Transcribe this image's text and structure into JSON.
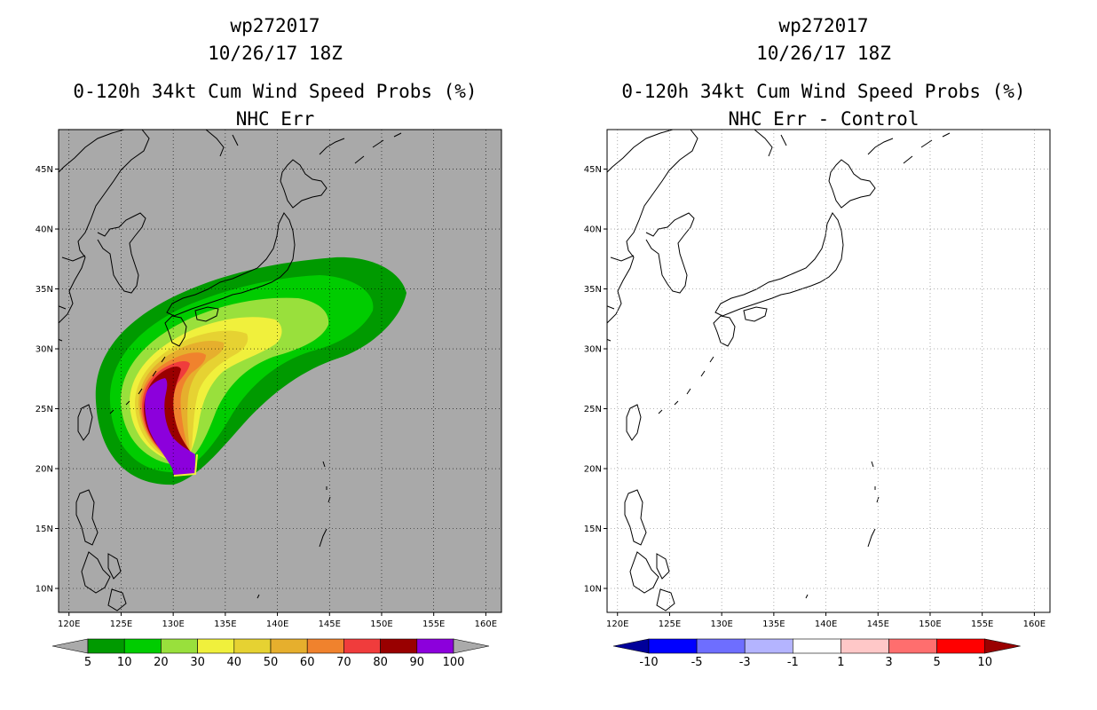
{
  "left": {
    "title_lines": [
      "wp272017",
      "10/26/17 18Z",
      "0-120h 34kt Cum Wind Speed Probs (%)",
      "NHC Err"
    ],
    "colorbar": {
      "labels": [
        "5",
        "10",
        "20",
        "30",
        "40",
        "50",
        "60",
        "70",
        "80",
        "90",
        "100"
      ],
      "colors": [
        "#009a00",
        "#00cc00",
        "#99e03c",
        "#f0f03c",
        "#e6d232",
        "#e6af2d",
        "#f0822d",
        "#f03c3c",
        "#990000",
        "#8c00dc"
      ],
      "end_color": "#aaaaaa"
    },
    "background": "#a9a9a9"
  },
  "right": {
    "title_lines": [
      "wp272017",
      "10/26/17 18Z",
      "0-120h 34kt Cum Wind Speed Probs (%)",
      "NHC Err - Control"
    ],
    "colorbar": {
      "labels": [
        "-10",
        "-5",
        "-3",
        "-1",
        "1",
        "3",
        "5",
        "10"
      ],
      "colors": [
        "#0000ff",
        "#6e6eff",
        "#b4b4ff",
        "#ffffff",
        "#ffc8c8",
        "#ff6e6e",
        "#ff0000"
      ],
      "left_end_color": "#00009a",
      "right_end_color": "#9a0000"
    },
    "background": "#ffffff"
  },
  "map": {
    "lon_labels": [
      "120E",
      "125E",
      "130E",
      "135E",
      "140E",
      "145E",
      "150E",
      "155E",
      "160E"
    ],
    "lat_labels": [
      "45N",
      "40N",
      "35N",
      "30N",
      "25N",
      "20N",
      "15N",
      "10N"
    ],
    "lon_values": [
      120,
      125,
      130,
      135,
      140,
      145,
      150,
      155,
      160
    ],
    "lat_values": [
      45,
      40,
      35,
      30,
      25,
      20,
      15,
      10
    ],
    "extent": {
      "lon_min": 119,
      "lon_max": 161.5,
      "lat_min": 8,
      "lat_max": 48.3
    }
  },
  "probability_bands": [
    {
      "threshold": 5,
      "color": "#009a00"
    },
    {
      "threshold": 10,
      "color": "#00cc00"
    },
    {
      "threshold": 20,
      "color": "#99e03c"
    },
    {
      "threshold": 30,
      "color": "#f0f03c"
    },
    {
      "threshold": 40,
      "color": "#e6d232"
    },
    {
      "threshold": 50,
      "color": "#e6af2d"
    },
    {
      "threshold": 60,
      "color": "#f0822d"
    },
    {
      "threshold": 70,
      "color": "#f03c3c"
    },
    {
      "threshold": 80,
      "color": "#990000"
    },
    {
      "threshold": 90,
      "color": "#8c00dc"
    }
  ]
}
